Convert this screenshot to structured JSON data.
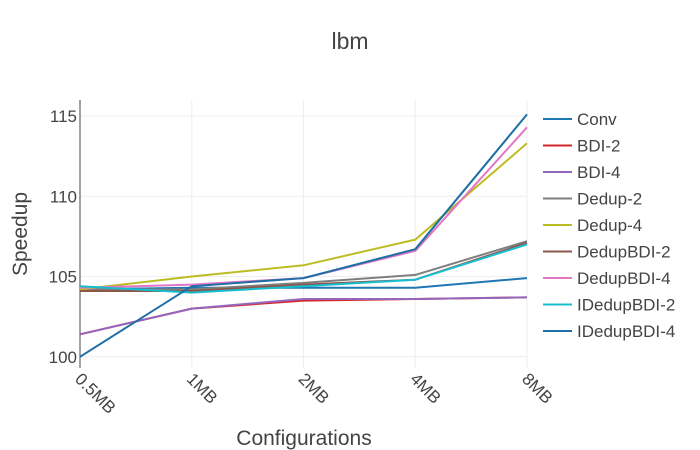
{
  "chart_data": {
    "type": "line",
    "title": "lbm",
    "xlabel": "Configurations",
    "ylabel": "Speedup",
    "categories": [
      "0.5MB",
      "1MB",
      "2MB",
      "4MB",
      "8MB"
    ],
    "ylim": [
      99.3,
      116
    ],
    "yticks": [
      100,
      105,
      110,
      115
    ],
    "grid": true,
    "legend_position": "right",
    "series": [
      {
        "name": "Conv",
        "color": "#1f77b4",
        "values": [
          104.2,
          104.3,
          104.3,
          104.3,
          104.9
        ]
      },
      {
        "name": "BDI-2",
        "color": "#d62728",
        "values": [
          101.4,
          103.0,
          103.5,
          103.6,
          103.7
        ]
      },
      {
        "name": "BDI-4",
        "color": "#9467bd",
        "values": [
          101.4,
          103.0,
          103.6,
          103.6,
          103.7
        ]
      },
      {
        "name": "Dedup-2",
        "color": "#7f7f7f",
        "values": [
          104.2,
          104.2,
          104.6,
          105.1,
          107.2
        ]
      },
      {
        "name": "Dedup-4",
        "color": "#bcbd22",
        "values": [
          104.2,
          105.0,
          105.7,
          107.3,
          113.3
        ]
      },
      {
        "name": "DedupBDI-2",
        "color": "#8c564b",
        "values": [
          104.1,
          104.1,
          104.5,
          104.8,
          107.1
        ]
      },
      {
        "name": "DedupBDI-4",
        "color": "#e377c2",
        "values": [
          104.3,
          104.5,
          104.9,
          106.6,
          114.3
        ]
      },
      {
        "name": "IDedupBDI-2",
        "color": "#17becf",
        "values": [
          104.4,
          104.0,
          104.4,
          104.8,
          107.0
        ]
      },
      {
        "name": "IDedupBDI-4",
        "color": "#1f6fa6",
        "values": [
          100.0,
          104.4,
          104.9,
          106.7,
          115.1
        ]
      }
    ]
  }
}
